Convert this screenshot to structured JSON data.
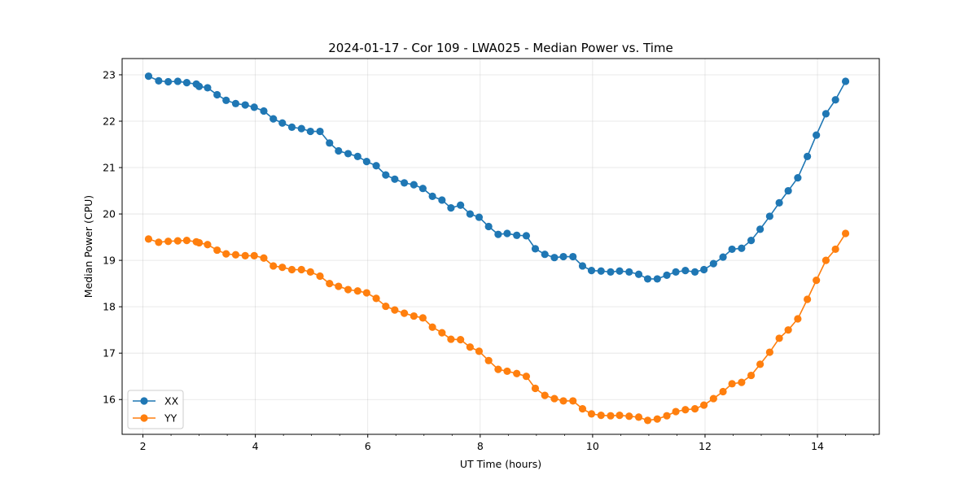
{
  "chart_data": {
    "type": "line",
    "title": "2024-01-17 - Cor 109 - LWA025 - Median Power vs. Time",
    "xlabel": "UT Time (hours)",
    "ylabel": "Median Power (CPU)",
    "xlim": [
      1.63,
      15.1
    ],
    "ylim": [
      15.25,
      23.35
    ],
    "xticks": [
      2,
      4,
      6,
      8,
      10,
      12,
      14
    ],
    "yticks": [
      16,
      17,
      18,
      19,
      20,
      21,
      22,
      23
    ],
    "grid": true,
    "legend_position": "lower-left",
    "x": [
      2.1,
      2.28,
      2.45,
      2.62,
      2.78,
      2.95,
      3.0,
      3.15,
      3.32,
      3.48,
      3.65,
      3.82,
      3.98,
      4.15,
      4.32,
      4.48,
      4.65,
      4.82,
      4.98,
      5.15,
      5.32,
      5.48,
      5.65,
      5.82,
      5.98,
      6.15,
      6.32,
      6.48,
      6.65,
      6.82,
      6.98,
      7.15,
      7.32,
      7.48,
      7.65,
      7.82,
      7.98,
      8.15,
      8.32,
      8.48,
      8.65,
      8.82,
      8.98,
      9.15,
      9.32,
      9.48,
      9.65,
      9.82,
      9.98,
      10.15,
      10.32,
      10.48,
      10.65,
      10.82,
      10.98,
      11.15,
      11.32,
      11.48,
      11.65,
      11.82,
      11.98,
      12.15,
      12.32,
      12.48,
      12.65,
      12.82,
      12.98,
      13.15,
      13.32,
      13.48,
      13.65,
      13.82,
      13.98,
      14.15,
      14.32,
      14.5
    ],
    "series": [
      {
        "name": "XX",
        "color": "#1f77b4",
        "values": [
          22.97,
          22.87,
          22.85,
          22.86,
          22.83,
          22.8,
          22.75,
          22.72,
          22.57,
          22.45,
          22.38,
          22.35,
          22.3,
          22.22,
          22.05,
          21.96,
          21.87,
          21.84,
          21.78,
          21.78,
          21.53,
          21.36,
          21.3,
          21.24,
          21.13,
          21.04,
          20.84,
          20.75,
          20.67,
          20.63,
          20.55,
          20.38,
          20.3,
          20.13,
          20.19,
          20.0,
          19.93,
          19.73,
          19.56,
          19.58,
          19.54,
          19.53,
          19.25,
          19.13,
          19.06,
          19.08,
          19.08,
          18.88,
          18.78,
          18.77,
          18.75,
          18.77,
          18.75,
          18.7,
          18.6,
          18.6,
          18.68,
          18.75,
          18.78,
          18.75,
          18.8,
          18.93,
          19.07,
          19.24,
          19.26,
          19.43,
          19.67,
          19.95,
          20.24,
          20.5,
          20.78,
          21.24,
          21.7,
          22.16,
          22.46,
          22.86
        ]
      },
      {
        "name": "YY",
        "color": "#ff7f0e",
        "values": [
          19.46,
          19.39,
          19.41,
          19.42,
          19.43,
          19.4,
          19.38,
          19.34,
          19.22,
          19.14,
          19.12,
          19.1,
          19.1,
          19.05,
          18.88,
          18.85,
          18.8,
          18.8,
          18.75,
          18.66,
          18.5,
          18.44,
          18.37,
          18.34,
          18.3,
          18.18,
          18.01,
          17.93,
          17.86,
          17.8,
          17.76,
          17.56,
          17.44,
          17.3,
          17.29,
          17.13,
          17.04,
          16.84,
          16.65,
          16.61,
          16.56,
          16.5,
          16.24,
          16.09,
          16.02,
          15.97,
          15.97,
          15.8,
          15.69,
          15.66,
          15.65,
          15.66,
          15.64,
          15.62,
          15.55,
          15.58,
          15.65,
          15.74,
          15.78,
          15.8,
          15.88,
          16.02,
          16.17,
          16.34,
          16.37,
          16.52,
          16.76,
          17.02,
          17.32,
          17.5,
          17.74,
          18.16,
          18.57,
          19.0,
          19.24,
          19.58
        ]
      }
    ]
  }
}
